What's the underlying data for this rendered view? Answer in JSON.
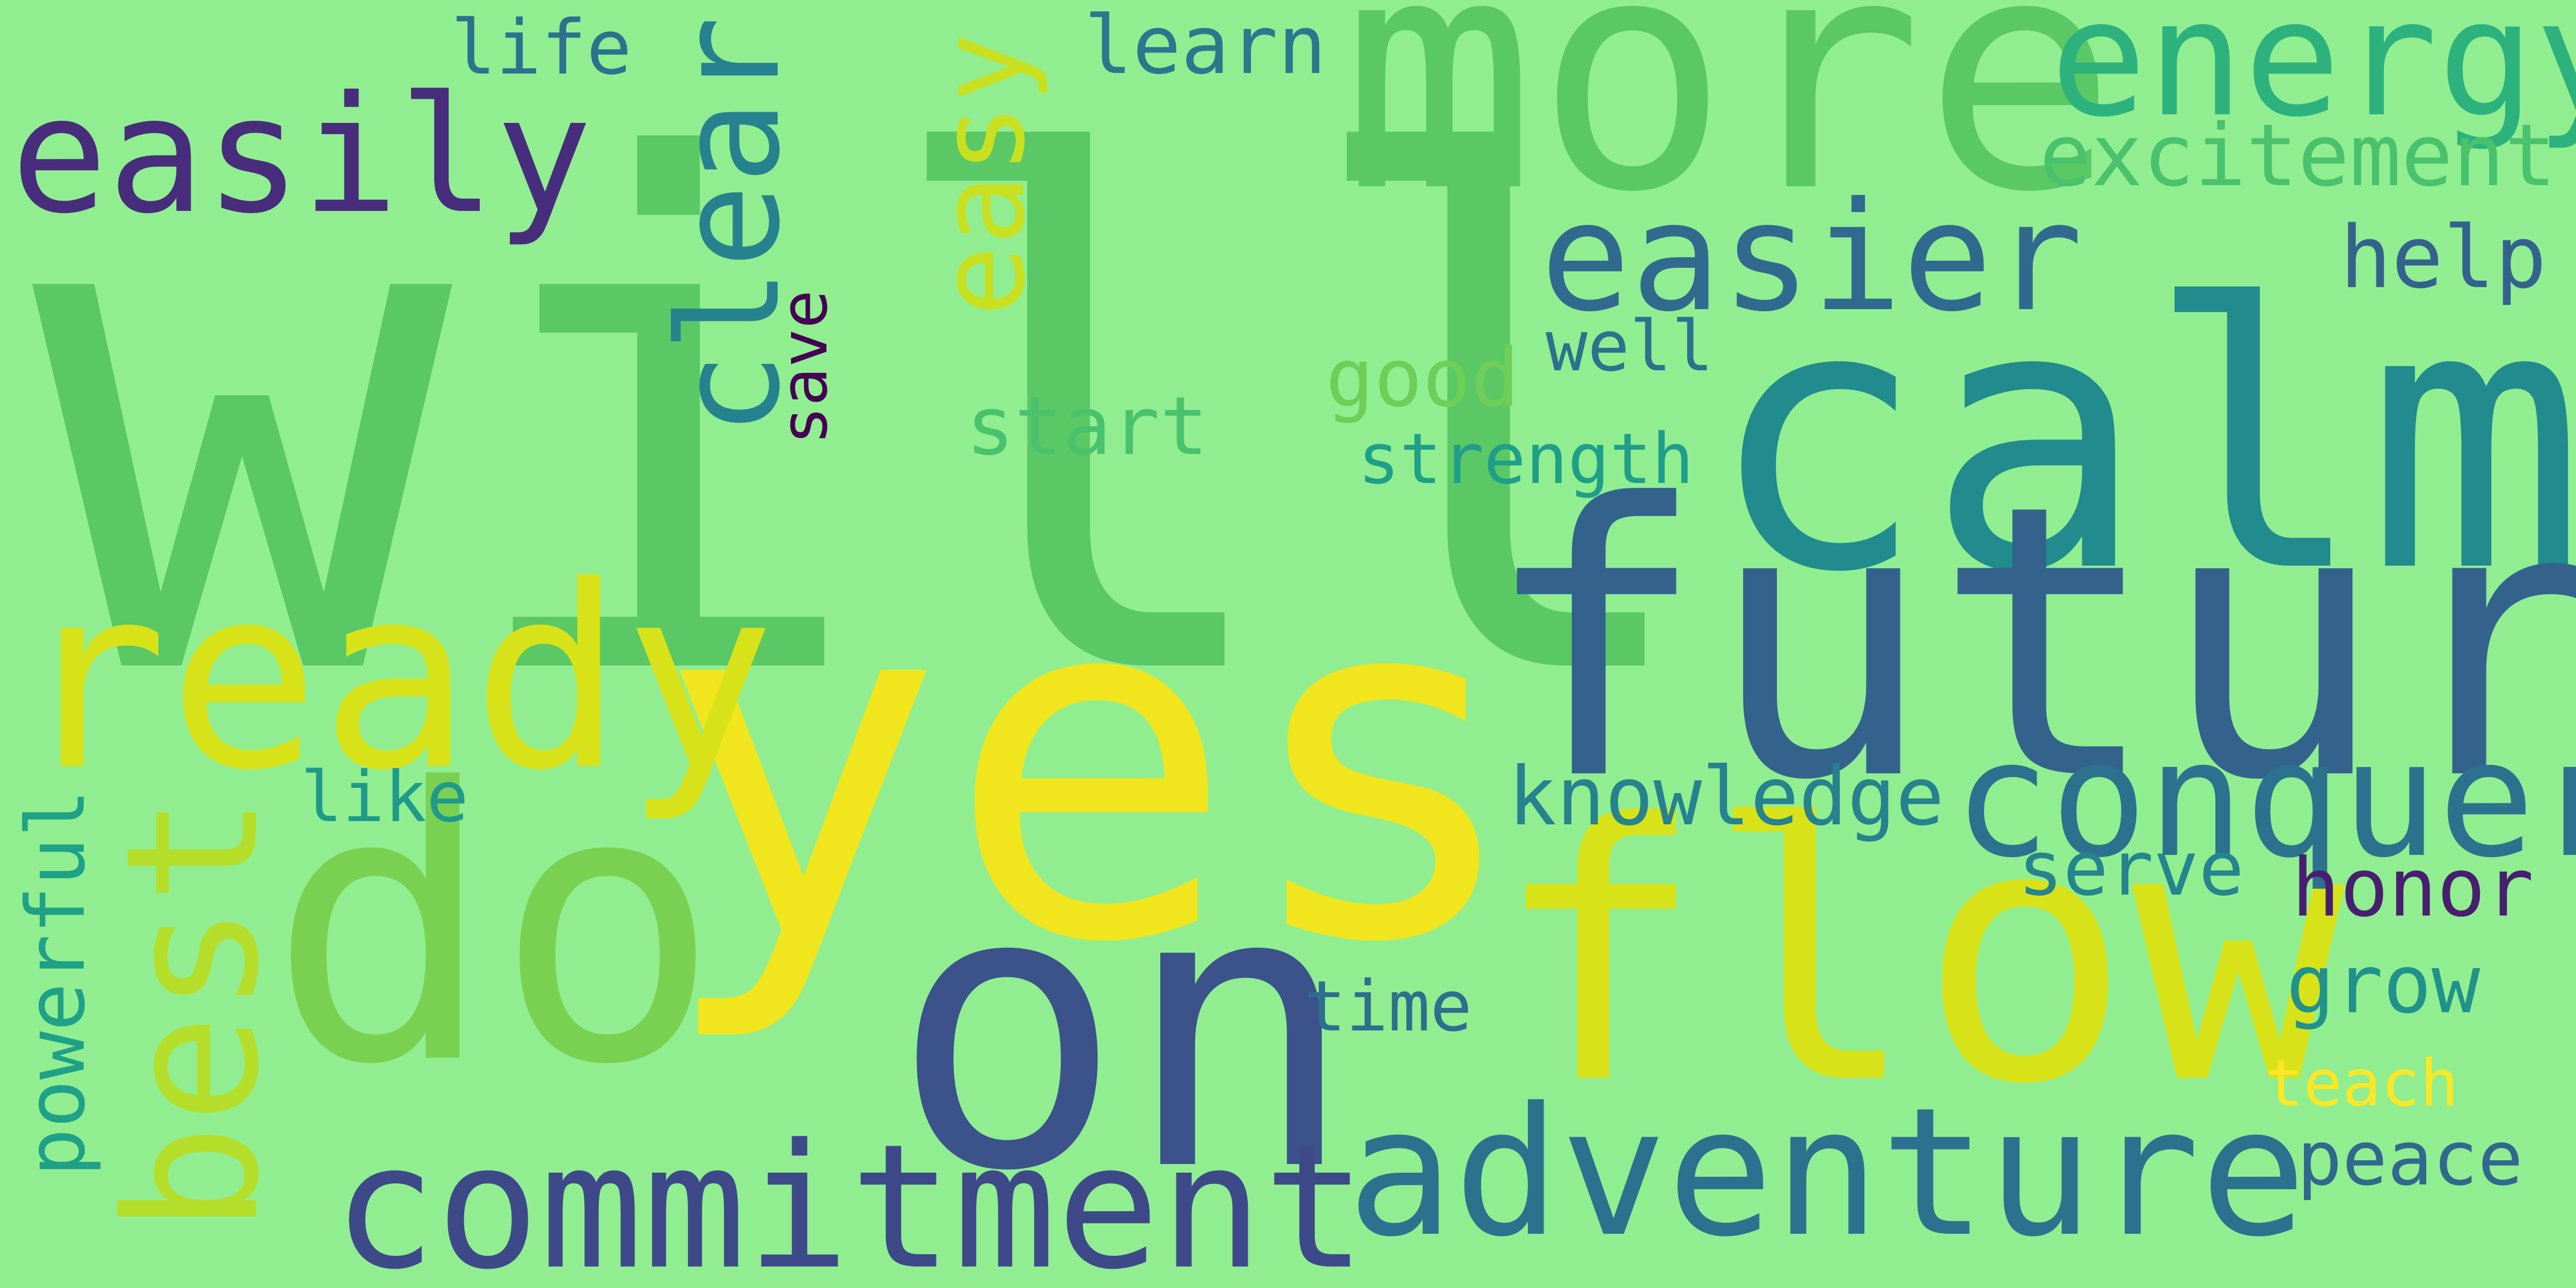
{
  "background": "#90ee90",
  "words": [
    {
      "text": "will",
      "color": "#5ac864"
    },
    {
      "text": "yes",
      "color": "#f1e51d"
    },
    {
      "text": "calm",
      "color": "#228b8d"
    },
    {
      "text": "future",
      "color": "#33638d"
    },
    {
      "text": "more",
      "color": "#5ac864"
    },
    {
      "text": "do",
      "color": "#7ad151"
    },
    {
      "text": "on",
      "color": "#3b528b"
    },
    {
      "text": "flow",
      "color": "#d8e219"
    },
    {
      "text": "ready",
      "color": "#d8e219"
    },
    {
      "text": "adventure",
      "color": "#2c728e"
    },
    {
      "text": "commitment",
      "color": "#3e4989"
    },
    {
      "text": "conquer",
      "color": "#2c728e"
    },
    {
      "text": "energy",
      "color": "#2db27d"
    },
    {
      "text": "easily",
      "color": "#472d7b"
    },
    {
      "text": "easier",
      "color": "#306a8e"
    },
    {
      "text": "excitement",
      "color": "#4ac16d"
    },
    {
      "text": "help",
      "color": "#33638d"
    },
    {
      "text": "life",
      "color": "#2c728e"
    },
    {
      "text": "learn",
      "color": "#2a788e"
    },
    {
      "text": "well",
      "color": "#2c728e"
    },
    {
      "text": "good",
      "color": "#6ece58"
    },
    {
      "text": "start",
      "color": "#4ac16d"
    },
    {
      "text": "strength",
      "color": "#1f9e89"
    },
    {
      "text": "knowledge",
      "color": "#26828e"
    },
    {
      "text": "like",
      "color": "#1f9a8a"
    },
    {
      "text": "serve",
      "color": "#25848e"
    },
    {
      "text": "honor",
      "color": "#481f70"
    },
    {
      "text": "grow",
      "color": "#21918c"
    },
    {
      "text": "teach",
      "color": "#fde725"
    },
    {
      "text": "peace",
      "color": "#31688e"
    },
    {
      "text": "time",
      "color": "#2e6e8e"
    },
    {
      "text": "clear",
      "color": "#26828e"
    },
    {
      "text": "easy",
      "color": "#c8e020"
    },
    {
      "text": "save",
      "color": "#440154"
    },
    {
      "text": "best",
      "color": "#b5de2b"
    },
    {
      "text": "powerful",
      "color": "#1fa187"
    }
  ]
}
